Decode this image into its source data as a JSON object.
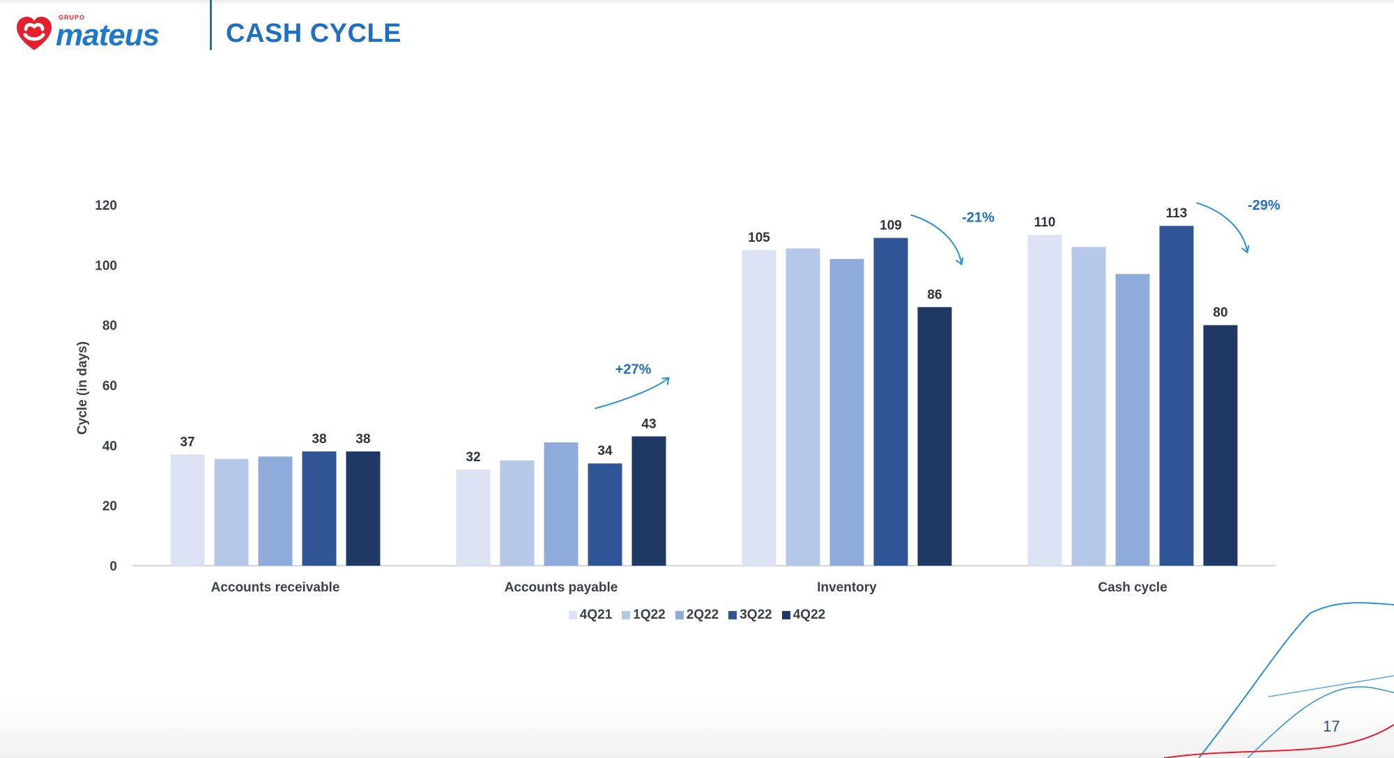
{
  "header": {
    "logo_top_text": "GRUPO",
    "logo_text": "mateus",
    "title": "CASH CYCLE"
  },
  "page_number": "17",
  "colors": {
    "accent": "#1f6fc0",
    "series": [
      "#dde3f4",
      "#b6c8e8",
      "#8fabdc",
      "#2f5597",
      "#203864"
    ]
  },
  "chart_data": {
    "type": "bar",
    "title": "",
    "xlabel": "",
    "ylabel": "Cycle (in days)",
    "ylim": [
      0,
      120
    ],
    "yticks": [
      "0",
      "20",
      "40",
      "60",
      "80",
      "100",
      "120"
    ],
    "categories": [
      "Accounts receivable",
      "Accounts payable",
      "Inventory",
      "Cash cycle"
    ],
    "series": [
      {
        "name": "4Q21",
        "values": [
          37,
          32,
          105,
          110
        ]
      },
      {
        "name": "1Q22",
        "values": [
          35.5,
          35,
          105.5,
          106
        ]
      },
      {
        "name": "2Q22",
        "values": [
          36.3,
          41,
          102,
          97
        ]
      },
      {
        "name": "3Q22",
        "values": [
          38,
          34,
          109,
          113
        ]
      },
      {
        "name": "4Q22",
        "values": [
          38,
          43,
          86,
          80
        ]
      }
    ],
    "data_labels": [
      {
        "category": 0,
        "series": 0,
        "text": "37"
      },
      {
        "category": 0,
        "series": 3,
        "text": "38"
      },
      {
        "category": 0,
        "series": 4,
        "text": "38"
      },
      {
        "category": 1,
        "series": 0,
        "text": "32"
      },
      {
        "category": 1,
        "series": 3,
        "text": "34"
      },
      {
        "category": 1,
        "series": 4,
        "text": "43"
      },
      {
        "category": 2,
        "series": 0,
        "text": "105"
      },
      {
        "category": 2,
        "series": 3,
        "text": "109"
      },
      {
        "category": 2,
        "series": 4,
        "text": "86"
      },
      {
        "category": 3,
        "series": 0,
        "text": "110"
      },
      {
        "category": 3,
        "series": 3,
        "text": "113"
      },
      {
        "category": 3,
        "series": 4,
        "text": "80"
      }
    ],
    "annotations": [
      {
        "category": 1,
        "text": "+27%",
        "direction": "up"
      },
      {
        "category": 2,
        "text": "-21%",
        "direction": "down"
      },
      {
        "category": 3,
        "text": "-29%",
        "direction": "down"
      }
    ],
    "legend_position": "bottom-center"
  }
}
